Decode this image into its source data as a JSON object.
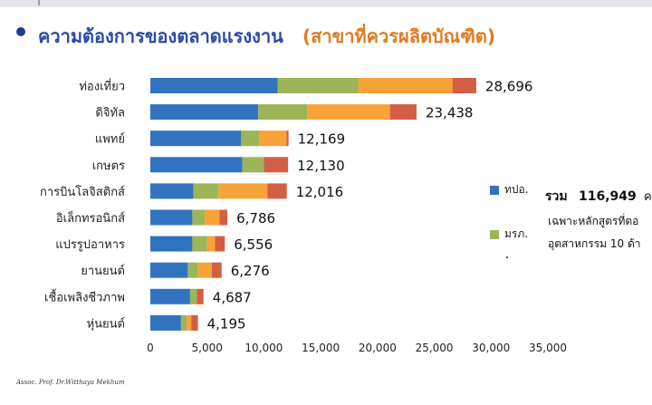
{
  "title": {
    "main": "ความต้องการของตลาดแรงงาน",
    "sub": "(สาขาที่ควรผลิตบัณฑิต)"
  },
  "legend": [
    {
      "label": "ทปอ.",
      "color": "#3273c0"
    },
    {
      "label": "มรภ.",
      "color": "#9bb557"
    }
  ],
  "note": {
    "total_label": "รวม",
    "total_value": "116,949",
    "total_cut": "ค",
    "line2": "เฉพาะหลักสูตรที่ตอ",
    "line3": "อุตสาหกรรม 10 ด้า"
  },
  "footer": "Assoc. Prof. Dr.Witthaya Mekhum",
  "chart_data": {
    "type": "bar",
    "orientation": "horizontal",
    "stacked": true,
    "xlim": [
      0,
      35000
    ],
    "x_ticks": [
      "0",
      "5,000",
      "10,000",
      "15,000",
      "20,000",
      "25,000",
      "30,000",
      "35,000"
    ],
    "categories": [
      "ท่องเที่ยว",
      "ดิจิทัล",
      "แพทย์",
      "เกษตร",
      "การบินโลจิสติกส์",
      "อิเล็กทรอนิกส์",
      "แปรรูปอาหาร",
      "ยานยนต์",
      "เชื้อเพลิงชีวภาพ",
      "หุ่นยนต์"
    ],
    "totals": [
      28696,
      23438,
      12169,
      12130,
      12016,
      6786,
      6556,
      6276,
      4687,
      4195
    ],
    "total_labels": [
      "28,696",
      "23,438",
      "12,169",
      "12,130",
      "12,016",
      "6,786",
      "6,556",
      "6,276",
      "4,687",
      "4,195"
    ],
    "series": [
      {
        "name": "ทปอ.",
        "color": "#3273c0",
        "values": [
          11200,
          9500,
          8000,
          8100,
          3800,
          3700,
          3700,
          3300,
          3500,
          2700
        ]
      },
      {
        "name": "มรภ.",
        "color": "#9bb557",
        "values": [
          7100,
          4300,
          1600,
          1900,
          2200,
          1100,
          1300,
          900,
          600,
          500
        ]
      },
      {
        "name": "",
        "color": "#f7a33a",
        "values": [
          8300,
          7300,
          2400,
          0,
          4300,
          1300,
          700,
          1200,
          0,
          400
        ]
      },
      {
        "name": "",
        "color": "#d25f45",
        "values": [
          2096,
          2338,
          169,
          2130,
          1716,
          686,
          856,
          876,
          587,
          595
        ]
      }
    ]
  }
}
